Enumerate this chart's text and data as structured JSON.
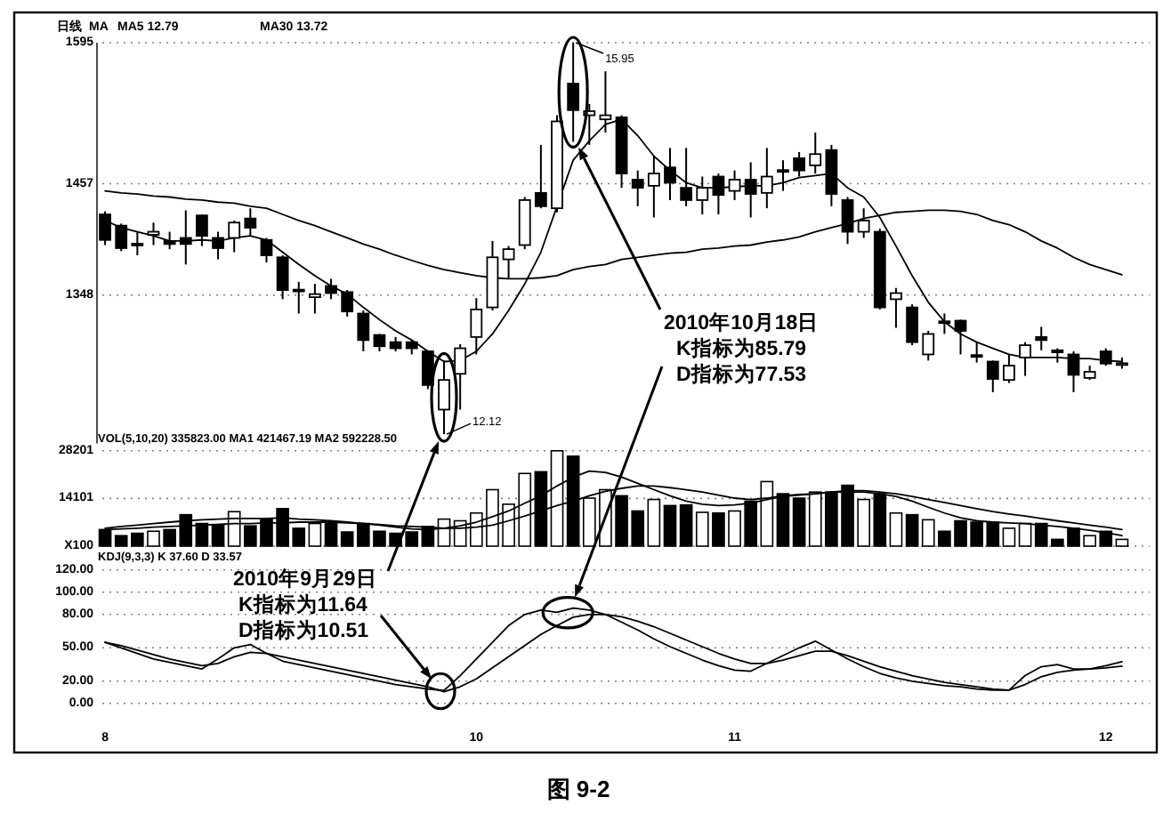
{
  "chart_data": [
    {
      "type": "candlestick",
      "title": "日线",
      "color": "#000000",
      "categories": [
        null,
        null,
        null,
        null,
        null,
        null,
        null,
        null,
        null,
        null,
        null,
        null,
        null,
        null,
        null,
        null,
        null,
        null,
        null,
        null,
        null,
        null,
        null,
        null,
        null,
        null,
        null,
        null,
        null,
        null,
        null,
        null,
        null,
        null,
        null,
        null,
        null,
        null,
        null,
        null,
        null,
        null,
        null,
        null,
        null,
        null,
        null,
        null,
        null,
        null,
        null,
        null,
        null,
        null,
        null,
        null,
        null,
        null,
        null,
        null,
        null,
        null,
        null,
        null
      ],
      "ohlc": [
        [
          1427,
          1430,
          1397,
          1402
        ],
        [
          1416,
          1418,
          1391,
          1394
        ],
        [
          1398,
          1410,
          1387,
          1397
        ],
        [
          1407,
          1419,
          1397,
          1410
        ],
        [
          1401,
          1410,
          1393,
          1398
        ],
        [
          1404,
          1431,
          1378,
          1398
        ],
        [
          1426,
          1427,
          1396,
          1406
        ],
        [
          1404,
          1410,
          1383,
          1394
        ],
        [
          1404,
          1421,
          1390,
          1419
        ],
        [
          1423,
          1433,
          1406,
          1414
        ],
        [
          1402,
          1404,
          1380,
          1387
        ],
        [
          1385,
          1387,
          1344,
          1353
        ],
        [
          1353,
          1361,
          1330,
          1352
        ],
        [
          1346,
          1359,
          1330,
          1349
        ],
        [
          1357,
          1364,
          1344,
          1350
        ],
        [
          1351,
          1353,
          1327,
          1332
        ],
        [
          1330,
          1333,
          1293,
          1304
        ],
        [
          1309,
          1310,
          1293,
          1298
        ],
        [
          1302,
          1307,
          1293,
          1296
        ],
        [
          1302,
          1304,
          1290,
          1296
        ],
        [
          1293,
          1294,
          1256,
          1260
        ],
        [
          1236,
          1284,
          1212,
          1265
        ],
        [
          1271,
          1300,
          1236,
          1296
        ],
        [
          1307,
          1345,
          1290,
          1334
        ],
        [
          1336,
          1401,
          1333,
          1385
        ],
        [
          1383,
          1396,
          1364,
          1393
        ],
        [
          1397,
          1444,
          1393,
          1441
        ],
        [
          1448,
          1495,
          1433,
          1435
        ],
        [
          1433,
          1524,
          1429,
          1518
        ],
        [
          1555,
          1595,
          1498,
          1529
        ],
        [
          1524,
          1535,
          1495,
          1528
        ],
        [
          1520,
          1567,
          1507,
          1524
        ],
        [
          1522,
          1524,
          1453,
          1467
        ],
        [
          1461,
          1470,
          1435,
          1453
        ],
        [
          1455,
          1484,
          1424,
          1467
        ],
        [
          1473,
          1492,
          1441,
          1458
        ],
        [
          1453,
          1492,
          1435,
          1441
        ],
        [
          1441,
          1464,
          1427,
          1453
        ],
        [
          1464,
          1467,
          1427,
          1446
        ],
        [
          1450,
          1470,
          1441,
          1461
        ],
        [
          1461,
          1478,
          1424,
          1447
        ],
        [
          1448,
          1492,
          1433,
          1464
        ],
        [
          1470,
          1480,
          1450,
          1469
        ],
        [
          1482,
          1488,
          1464,
          1470
        ],
        [
          1475,
          1507,
          1467,
          1486
        ],
        [
          1490,
          1495,
          1435,
          1447
        ],
        [
          1441,
          1444,
          1398,
          1410
        ],
        [
          1410,
          1433,
          1404,
          1421
        ],
        [
          1410,
          1413,
          1334,
          1336
        ],
        [
          1344,
          1355,
          1316,
          1350
        ],
        [
          1336,
          1339,
          1299,
          1302
        ],
        [
          1290,
          1313,
          1284,
          1310
        ],
        [
          1322,
          1330,
          1310,
          1321
        ],
        [
          1323,
          1324,
          1290,
          1313
        ],
        [
          1289,
          1302,
          1282,
          1288
        ],
        [
          1283,
          1284,
          1253,
          1266
        ],
        [
          1265,
          1290,
          1262,
          1279
        ],
        [
          1287,
          1302,
          1269,
          1299
        ],
        [
          1307,
          1317,
          1294,
          1304
        ],
        [
          1294,
          1296,
          1282,
          1292
        ],
        [
          1290,
          1293,
          1253,
          1270
        ],
        [
          1267,
          1279,
          1265,
          1273
        ],
        [
          1293,
          1296,
          1279,
          1281
        ],
        [
          1280,
          1287,
          1276,
          1281
        ]
      ],
      "series": [
        {
          "type": "line",
          "color": "#000000",
          "values": [
            1421,
            1414,
            1410,
            1406,
            1401,
            1401,
            1402,
            1401,
            1404,
            1406,
            1402,
            1390,
            1378,
            1367,
            1357,
            1349,
            1336,
            1324,
            1313,
            1304,
            1293,
            1283,
            1284,
            1293,
            1310,
            1333,
            1359,
            1390,
            1435,
            1480,
            1499,
            1515,
            1520,
            1504,
            1484,
            1470,
            1458,
            1453,
            1453,
            1454,
            1455,
            1455,
            1458,
            1463,
            1465,
            1467,
            1453,
            1444,
            1424,
            1396,
            1367,
            1341,
            1322,
            1310,
            1302,
            1296,
            1290,
            1287,
            1287,
            1287,
            1286,
            1286,
            1284,
            1283
          ]
        },
        {
          "type": "line",
          "color": "#000000",
          "values": [
            1450,
            1448,
            1447,
            1445,
            1444,
            1442,
            1441,
            1439,
            1438,
            1435,
            1433,
            1427,
            1421,
            1416,
            1410,
            1404,
            1398,
            1393,
            1387,
            1382,
            1377,
            1373,
            1370,
            1367,
            1365,
            1364,
            1364,
            1365,
            1367,
            1373,
            1376,
            1378,
            1383,
            1385,
            1387,
            1389,
            1390,
            1393,
            1394,
            1396,
            1397,
            1400,
            1402,
            1405,
            1410,
            1414,
            1418,
            1423,
            1426,
            1429,
            1430,
            1431,
            1431,
            1430,
            1427,
            1421,
            1417,
            1410,
            1401,
            1394,
            1385,
            1378,
            1373,
            1368
          ]
        }
      ],
      "ylim": [
        1203,
        1595
      ],
      "yticks": [
        1348,
        1457,
        1595
      ],
      "grid": "y",
      "tick_labels": "y",
      "annotations": [
        "MA",
        "MA5 12.79",
        "MA30 13.72",
        "15.95",
        "12.12",
        "2010年10月18日",
        "K指标为85.79",
        "D指标为77.53"
      ]
    },
    {
      "type": "bar",
      "title": "VOL(5,10,20) 335823.00 MA1 421467.19 MA2 592228.50",
      "categories": [
        null,
        null,
        null,
        null,
        null,
        null,
        null,
        null,
        null,
        null,
        null,
        null,
        null,
        null,
        null,
        null,
        null,
        null,
        null,
        null,
        null,
        null,
        null,
        null,
        null,
        null,
        null,
        null,
        null,
        null,
        null,
        null,
        null,
        null,
        null,
        null,
        null,
        null,
        null,
        null,
        null,
        null,
        null,
        null,
        null,
        null,
        null,
        null,
        null,
        null,
        null,
        null,
        null,
        null,
        null,
        null,
        null,
        null,
        null,
        null,
        null,
        null,
        null,
        null
      ],
      "series": [
        {
          "colors": [
            "#000000",
            "#000000",
            "#000000",
            "#ffffff",
            "#000000",
            "#000000",
            "#000000",
            "#000000",
            "#ffffff",
            "#000000",
            "#000000",
            "#000000",
            "#000000",
            "#ffffff",
            "#000000",
            "#000000",
            "#000000",
            "#000000",
            "#000000",
            "#000000",
            "#000000",
            "#ffffff",
            "#ffffff",
            "#ffffff",
            "#ffffff",
            "#ffffff",
            "#ffffff",
            "#000000",
            "#ffffff",
            "#000000",
            "#ffffff",
            "#ffffff",
            "#000000",
            "#000000",
            "#ffffff",
            "#000000",
            "#000000",
            "#ffffff",
            "#000000",
            "#ffffff",
            "#000000",
            "#ffffff",
            "#000000",
            "#000000",
            "#ffffff",
            "#000000",
            "#000000",
            "#ffffff",
            "#000000",
            "#ffffff",
            "#000000",
            "#ffffff",
            "#000000",
            "#000000",
            "#000000",
            "#000000",
            "#ffffff",
            "#ffffff",
            "#000000",
            "#000000",
            "#000000",
            "#ffffff",
            "#000000",
            "#ffffff"
          ],
          "values": [
            4900,
            3100,
            3800,
            4400,
            4900,
            9300,
            6700,
            6400,
            10200,
            6000,
            8200,
            11100,
            5300,
            6700,
            6700,
            4200,
            6700,
            4400,
            3800,
            4200,
            5800,
            8000,
            7500,
            9800,
            16700,
            12400,
            21500,
            22000,
            28200,
            26600,
            14200,
            16700,
            14900,
            10400,
            13800,
            12000,
            12200,
            10000,
            9800,
            10400,
            13300,
            19100,
            15500,
            14200,
            16000,
            16000,
            18000,
            13800,
            15500,
            9800,
            9300,
            7800,
            4400,
            7500,
            7100,
            7100,
            5300,
            6700,
            6700,
            2000,
            5300,
            3100,
            4400,
            2000
          ]
        },
        {
          "type": "line",
          "color": "#000000",
          "values": [
            5300,
            5800,
            6200,
            6700,
            7100,
            7500,
            7800,
            8000,
            8200,
            8200,
            8200,
            8400,
            8000,
            7800,
            7500,
            7100,
            6700,
            6200,
            5600,
            5100,
            4900,
            5300,
            6000,
            7100,
            8700,
            10400,
            12700,
            14900,
            17800,
            20400,
            22200,
            21800,
            20400,
            18600,
            16700,
            14900,
            13300,
            12400,
            12000,
            12200,
            12700,
            13800,
            14700,
            15100,
            15500,
            16000,
            16000,
            16000,
            15500,
            14700,
            13300,
            11500,
            9800,
            8400,
            7500,
            7100,
            6900,
            6700,
            6200,
            5800,
            5300,
            4700,
            4000,
            3100
          ]
        },
        {
          "type": "line",
          "color": "#000000",
          "values": [
            4900,
            5100,
            5300,
            5600,
            5800,
            6000,
            6200,
            6400,
            6700,
            6700,
            6900,
            6900,
            7100,
            7100,
            7100,
            6900,
            6700,
            6400,
            6000,
            5800,
            5600,
            5300,
            5300,
            5600,
            6200,
            7500,
            8900,
            10400,
            12000,
            13300,
            14900,
            16200,
            17100,
            17800,
            17800,
            17300,
            16700,
            16000,
            15100,
            14200,
            13800,
            14200,
            14900,
            15300,
            15500,
            16000,
            16400,
            16400,
            16000,
            15500,
            14700,
            13800,
            12900,
            12000,
            11100,
            10200,
            9500,
            8900,
            8200,
            7500,
            6900,
            6200,
            5600,
            4900
          ]
        }
      ],
      "ylim": [
        0,
        28201
      ],
      "yticks": [
        {
          "value": 0,
          "label": "X100"
        },
        14101,
        28201
      ],
      "grid": "y",
      "tick_labels": "y"
    },
    {
      "type": "line",
      "title": "KDJ(9,3,3) K 37.60 D 33.57",
      "categories": [
        "8",
        null,
        null,
        null,
        null,
        null,
        null,
        null,
        null,
        null,
        null,
        null,
        null,
        null,
        null,
        null,
        null,
        null,
        null,
        null,
        null,
        null,
        null,
        "10",
        null,
        null,
        null,
        null,
        null,
        null,
        null,
        null,
        null,
        null,
        null,
        null,
        null,
        null,
        null,
        "11",
        null,
        null,
        null,
        null,
        null,
        null,
        null,
        null,
        null,
        null,
        null,
        null,
        null,
        null,
        null,
        null,
        null,
        null,
        null,
        null,
        null,
        null,
        "12",
        null
      ],
      "series": [
        {
          "color": "#000000",
          "values": [
            55,
            50,
            45,
            40,
            37,
            34,
            31,
            40,
            50,
            53,
            45,
            38,
            35,
            32,
            29,
            26,
            23,
            20,
            17,
            15,
            13,
            11.64,
            25,
            40,
            55,
            70,
            80,
            84,
            82,
            85.79,
            84,
            80,
            73,
            66,
            58,
            51,
            45,
            39,
            34,
            30,
            29,
            36,
            43,
            50,
            56,
            48,
            40,
            33,
            27,
            23,
            20,
            18,
            16,
            15,
            13,
            12,
            12,
            25,
            33,
            35,
            31,
            31,
            34,
            37.6
          ]
        },
        {
          "color": "#000000",
          "values": [
            55,
            52,
            48,
            44,
            40,
            37,
            34,
            36,
            42,
            46,
            45,
            42,
            39,
            36,
            33,
            30,
            27,
            24,
            21,
            18,
            15,
            10.51,
            15,
            22,
            32,
            42,
            52,
            62,
            70,
            77.53,
            80,
            80,
            78,
            74,
            69,
            63,
            57,
            51,
            45,
            40,
            36,
            36,
            39,
            43,
            47,
            47,
            43,
            38,
            33,
            29,
            25,
            22,
            19,
            17,
            15,
            13,
            12,
            17,
            24,
            28,
            30,
            31,
            32,
            33.57
          ]
        }
      ],
      "ylim": [
        0,
        120
      ],
      "yticks": [
        {
          "value": 0,
          "label": "0.00"
        },
        {
          "value": 20,
          "label": "20.00"
        },
        {
          "value": 50,
          "label": "50.00"
        },
        {
          "value": 80,
          "label": "80.00"
        },
        {
          "value": 100,
          "label": "100.00"
        },
        {
          "value": 120,
          "label": "120.00"
        }
      ],
      "grid": "y",
      "annotations": [
        "2010年9月29日",
        "K指标为11.64",
        "D指标为10.51",
        "图 9-2"
      ]
    }
  ]
}
